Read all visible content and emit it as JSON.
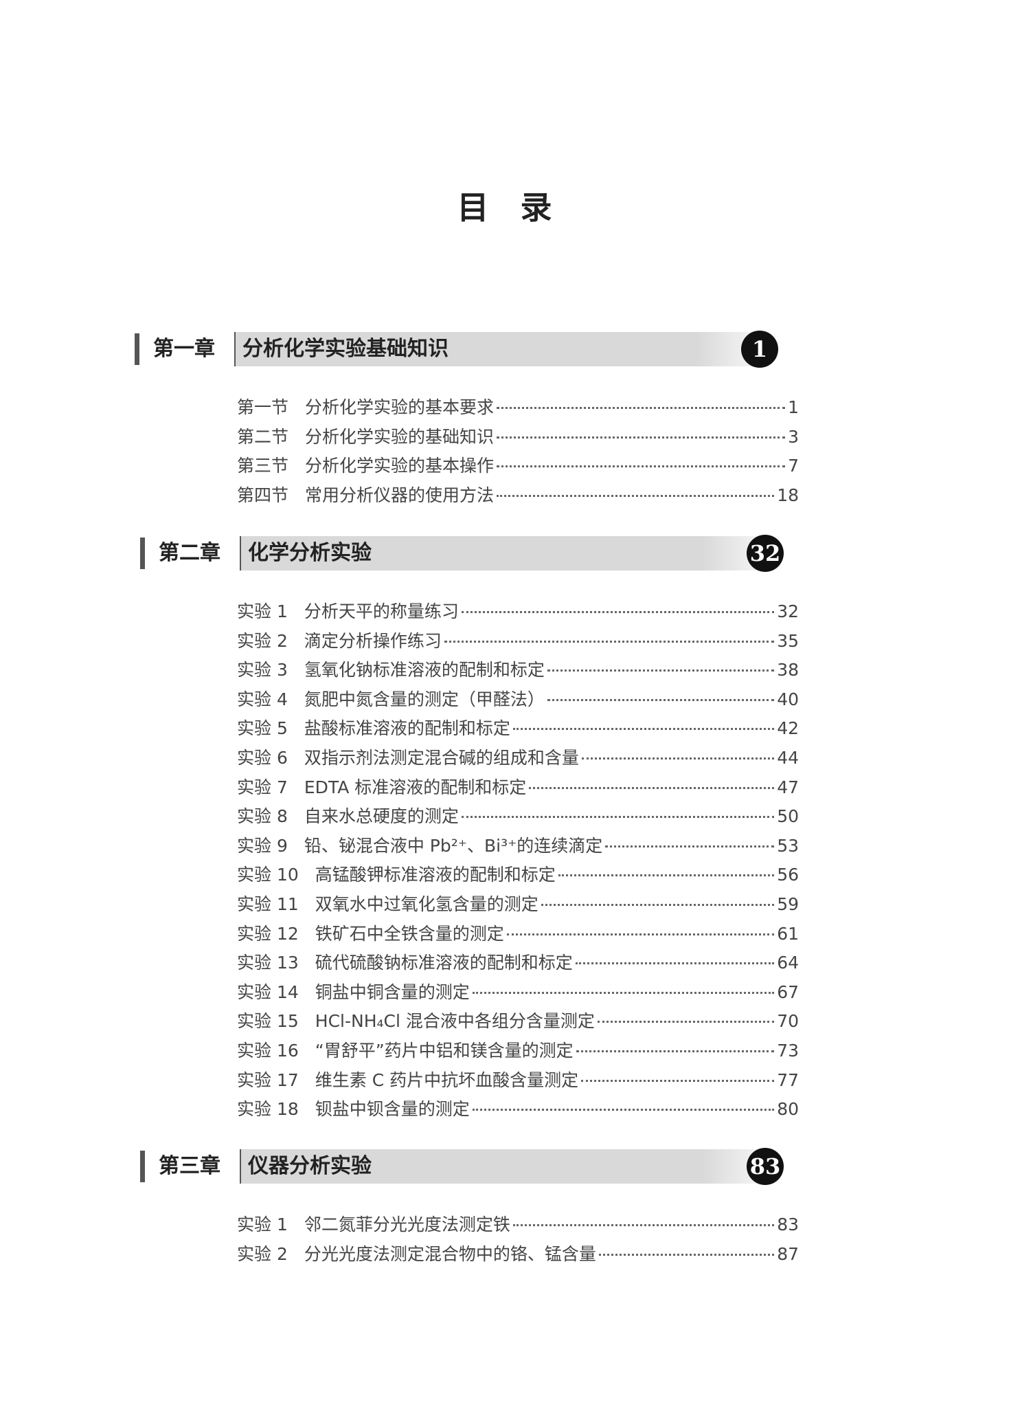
{
  "title": "目　录",
  "chapters": [
    {
      "label": "第一章",
      "title": "分析化学实验基础知识",
      "page": 1,
      "entries": [
        {
          "label": "第一节",
          "title": "分析化学实验的基本要求",
          "page": 1
        },
        {
          "label": "第二节",
          "title": "分析化学实验的基础知识",
          "page": 3
        },
        {
          "label": "第三节",
          "title": "分析化学实验的基本操作",
          "page": 7
        },
        {
          "label": "第四节",
          "title": "常用分析仪器的使用方法",
          "page": 18
        }
      ]
    },
    {
      "label": "第二章",
      "title": "化学分析实验",
      "page": 32,
      "entries": [
        {
          "label": "实验 1",
          "title": "分析天平的称量练习",
          "page": 32
        },
        {
          "label": "实验 2",
          "title": "滴定分析操作练习",
          "page": 35
        },
        {
          "label": "实验 3",
          "title": "氢氧化钠标准溶液的配制和标定",
          "page": 38
        },
        {
          "label": "实验 4",
          "title": "氮肥中氮含量的测定（甲醛法）",
          "page": 40
        },
        {
          "label": "实验 5",
          "title": "盐酸标准溶液的配制和标定",
          "page": 42
        },
        {
          "label": "实验 6",
          "title": "双指示剂法测定混合碱的组成和含量",
          "page": 44
        },
        {
          "label": "实验 7",
          "title": "EDTA 标准溶液的配制和标定",
          "page": 47
        },
        {
          "label": "实验 8",
          "title": "自来水总硬度的测定",
          "page": 50
        },
        {
          "label": "实验 9",
          "title": "铅、铋混合液中 Pb²⁺、Bi³⁺的连续滴定",
          "page": 53
        },
        {
          "label": "实验 10",
          "title": "高锰酸钾标准溶液的配制和标定",
          "page": 56
        },
        {
          "label": "实验 11",
          "title": "双氧水中过氧化氢含量的测定",
          "page": 59
        },
        {
          "label": "实验 12",
          "title": "铁矿石中全铁含量的测定",
          "page": 61
        },
        {
          "label": "实验 13",
          "title": "硫代硫酸钠标准溶液的配制和标定",
          "page": 64
        },
        {
          "label": "实验 14",
          "title": "铜盐中铜含量的测定",
          "page": 67
        },
        {
          "label": "实验 15",
          "title": "HCl-NH₄Cl 混合液中各组分含量测定",
          "page": 70
        },
        {
          "label": "实验 16",
          "title": "“胃舒平”药片中铝和镁含量的测定",
          "page": 73
        },
        {
          "label": "实验 17",
          "title": "维生素 C 药片中抗坏血酸含量测定",
          "page": 77
        },
        {
          "label": "实验 18",
          "title": "钡盐中钡含量的测定",
          "page": 80
        }
      ]
    },
    {
      "label": "第三章",
      "title": "仪器分析实验",
      "page": 83,
      "entries": [
        {
          "label": "实验 1",
          "title": "邻二氮菲分光光度法测定铁",
          "page": 83
        },
        {
          "label": "实验 2",
          "title": "分光光度法测定混合物中的铬、锰含量",
          "page": 87
        }
      ]
    }
  ]
}
